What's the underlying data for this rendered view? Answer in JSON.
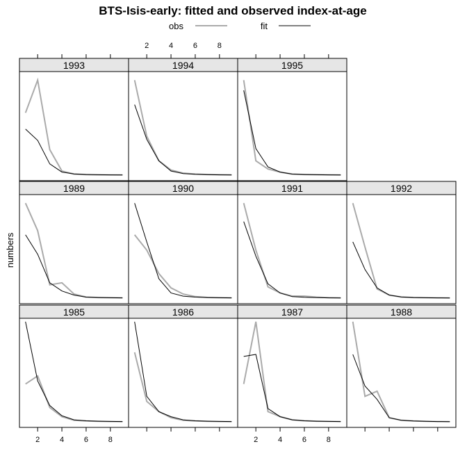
{
  "chart_data": {
    "type": "line",
    "title": "BTS-Isis-early: fitted and observed index-at-age",
    "ylabel": "numbers",
    "xlabel": "",
    "x": [
      1,
      2,
      3,
      4,
      5,
      6,
      7,
      8,
      9
    ],
    "x_ticks": [
      2,
      4,
      6,
      8
    ],
    "xlim": [
      0.5,
      9.5
    ],
    "ylim": [
      0,
      1
    ],
    "legend": {
      "placement": "top",
      "entries": [
        {
          "name": "obs",
          "color": "#aaaaaa"
        },
        {
          "name": "fit",
          "color": "#000000"
        }
      ]
    },
    "panels": [
      {
        "year": "1993",
        "obs": [
          0.61,
          0.93,
          0.25,
          0.04,
          0.01,
          0.005,
          0.003,
          0.002,
          0.002
        ],
        "fit": [
          0.45,
          0.34,
          0.11,
          0.03,
          0.012,
          0.006,
          0.004,
          0.003,
          0.002
        ]
      },
      {
        "year": "1994",
        "obs": [
          0.93,
          0.38,
          0.14,
          0.05,
          0.02,
          0.01,
          0.006,
          0.004,
          0.003
        ],
        "fit": [
          0.69,
          0.35,
          0.14,
          0.04,
          0.015,
          0.008,
          0.005,
          0.003,
          0.002
        ]
      },
      {
        "year": "1995",
        "obs": [
          0.93,
          0.14,
          0.06,
          0.03,
          0.01,
          0.006,
          0.004,
          0.003,
          0.002
        ],
        "fit": [
          0.83,
          0.26,
          0.08,
          0.03,
          0.01,
          0.006,
          0.004,
          0.003,
          0.002
        ]
      },
      {
        "year": "1989",
        "obs": [
          0.93,
          0.66,
          0.13,
          0.15,
          0.04,
          0.01,
          0.006,
          0.004,
          0.003
        ],
        "fit": [
          0.62,
          0.43,
          0.15,
          0.07,
          0.03,
          0.01,
          0.006,
          0.004,
          0.003
        ]
      },
      {
        "year": "1990",
        "obs": [
          0.62,
          0.47,
          0.24,
          0.1,
          0.04,
          0.015,
          0.007,
          0.004,
          0.003
        ],
        "fit": [
          0.93,
          0.55,
          0.19,
          0.05,
          0.02,
          0.01,
          0.006,
          0.004,
          0.003
        ]
      },
      {
        "year": "1991",
        "obs": [
          0.93,
          0.47,
          0.11,
          0.05,
          0.02,
          0.02,
          0.01,
          0.005,
          0.003
        ],
        "fit": [
          0.75,
          0.41,
          0.14,
          0.05,
          0.015,
          0.008,
          0.005,
          0.003,
          0.002
        ]
      },
      {
        "year": "1992",
        "obs": [
          0.93,
          0.5,
          0.09,
          0.03,
          0.01,
          0.006,
          0.004,
          0.003,
          0.002
        ],
        "fit": [
          0.55,
          0.28,
          0.1,
          0.03,
          0.012,
          0.006,
          0.004,
          0.003,
          0.002
        ]
      },
      {
        "year": "1985",
        "obs": [
          0.37,
          0.45,
          0.14,
          0.05,
          0.015,
          0.008,
          0.005,
          0.003,
          0.002
        ],
        "fit": [
          0.98,
          0.4,
          0.16,
          0.06,
          0.02,
          0.01,
          0.006,
          0.004,
          0.003
        ]
      },
      {
        "year": "1986",
        "obs": [
          0.68,
          0.2,
          0.1,
          0.04,
          0.015,
          0.008,
          0.005,
          0.003,
          0.002
        ],
        "fit": [
          0.98,
          0.25,
          0.1,
          0.05,
          0.02,
          0.01,
          0.006,
          0.004,
          0.003
        ]
      },
      {
        "year": "1987",
        "obs": [
          0.37,
          0.98,
          0.1,
          0.05,
          0.02,
          0.01,
          0.006,
          0.004,
          0.003
        ],
        "fit": [
          0.64,
          0.66,
          0.13,
          0.05,
          0.02,
          0.01,
          0.006,
          0.004,
          0.003
        ]
      },
      {
        "year": "1988",
        "obs": [
          0.98,
          0.25,
          0.3,
          0.04,
          0.015,
          0.008,
          0.005,
          0.003,
          0.002
        ],
        "fit": [
          0.66,
          0.35,
          0.22,
          0.04,
          0.015,
          0.008,
          0.005,
          0.003,
          0.002
        ]
      }
    ]
  }
}
